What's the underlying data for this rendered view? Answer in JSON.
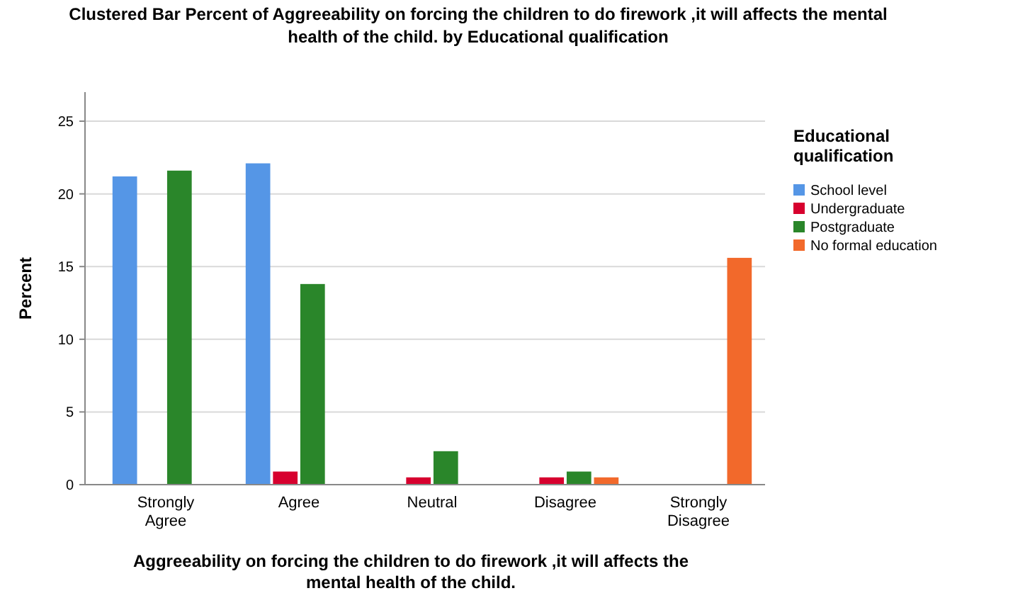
{
  "chart_data": {
    "type": "bar",
    "title": "Clustered Bar Percent of Aggreeability on forcing the children to do firework ,it will affects the mental health of the  child.  by Educational qualification",
    "xlabel": "Aggreeability on forcing the children to do firework ,it will affects the mental health of the  child.",
    "ylabel": "Percent",
    "legend_title": "Educational qualification",
    "categories": [
      "Strongly Agree",
      "Agree",
      "Neutral",
      "Disagree",
      "Strongly Disagree"
    ],
    "series": [
      {
        "name": "School level",
        "color": "#5596e6",
        "values": [
          21.2,
          22.1,
          null,
          null,
          null
        ]
      },
      {
        "name": "Undergraduate",
        "color": "#d7002e",
        "values": [
          null,
          0.9,
          0.5,
          0.5,
          null
        ]
      },
      {
        "name": "Postgraduate",
        "color": "#2a862a",
        "values": [
          21.6,
          13.8,
          2.3,
          0.9,
          null
        ]
      },
      {
        "name": "No formal education",
        "color": "#f2692b",
        "values": [
          null,
          null,
          null,
          0.5,
          15.6
        ]
      }
    ],
    "ylim": [
      0,
      27
    ],
    "yticks": [
      0,
      5,
      10,
      15,
      20,
      25
    ],
    "grid": "y",
    "legend": "right"
  }
}
